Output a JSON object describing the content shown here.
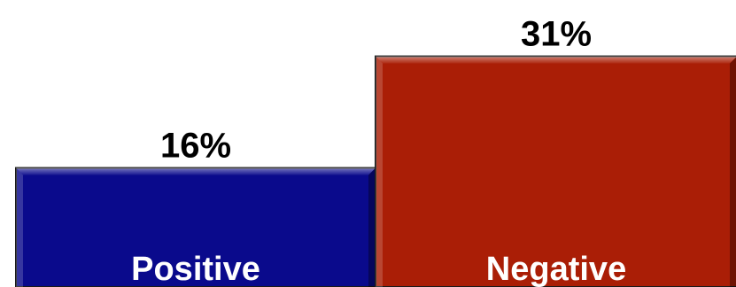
{
  "chart_data": {
    "type": "bar",
    "categories": [
      "Positive",
      "Negative"
    ],
    "values": [
      16,
      31
    ],
    "value_labels": [
      "16%",
      "31%"
    ],
    "colors": [
      "#0a0a8c",
      "#aa1e06"
    ],
    "title": "",
    "xlabel": "",
    "ylabel": ""
  }
}
